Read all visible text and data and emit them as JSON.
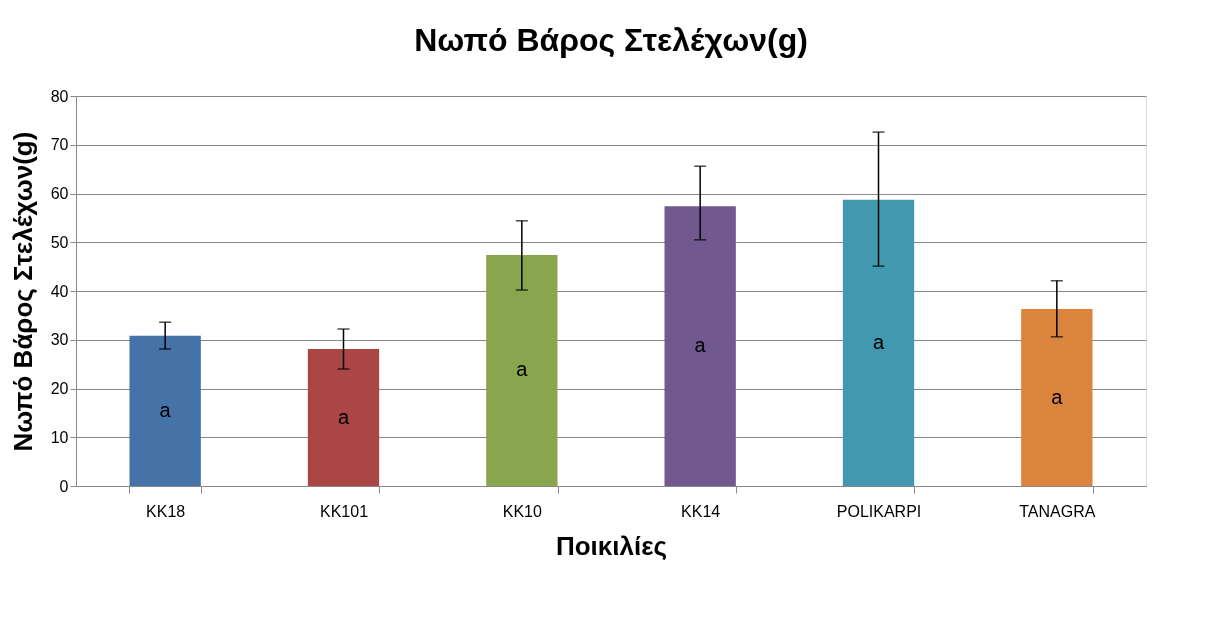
{
  "chart_data": {
    "type": "bar",
    "title": "Νωπό Βάρος Στελέχων(g)",
    "xlabel": "Ποικιλίες",
    "ylabel": "Νωπό Βάρος Στελέχων(g)",
    "categories": [
      "KK18",
      "KK101",
      "KK10",
      "KK14",
      "POLIKARPI",
      "TANAGRA"
    ],
    "values": [
      30.8,
      28.1,
      47.4,
      57.4,
      58.7,
      36.3
    ],
    "colors": [
      "#4572a7",
      "#aa4643",
      "#89a54e",
      "#71588f",
      "#4198af",
      "#db843d"
    ],
    "errors": [
      [
        28.1,
        33.6
      ],
      [
        24.0,
        32.2
      ],
      [
        40.2,
        54.4
      ],
      [
        50.5,
        65.6
      ],
      [
        45.1,
        72.6
      ],
      [
        30.6,
        42.1
      ]
    ],
    "annotations": [
      "a",
      "a",
      "a",
      "a",
      "a",
      "a"
    ],
    "ylim": [
      0,
      80
    ],
    "yticks": [
      0,
      10,
      20,
      30,
      40,
      50,
      60,
      70,
      80
    ],
    "grid": "y"
  }
}
